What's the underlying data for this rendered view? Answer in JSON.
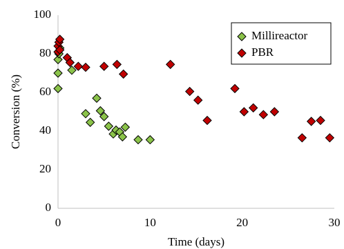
{
  "chart_data": {
    "type": "scatter",
    "title": "",
    "xlabel": "Time (days)",
    "ylabel": "Conversion  (%)",
    "xlim": [
      0,
      30
    ],
    "ylim": [
      0,
      100
    ],
    "xticks": [
      "0",
      "10",
      "20",
      "30"
    ],
    "yticks": [
      "0",
      "20",
      "40",
      "60",
      "80",
      "100"
    ],
    "grid": false,
    "legend_position": "top-right",
    "series": [
      {
        "name": "Millireactor",
        "color": "#8BC34A",
        "marker": "diamond",
        "points": [
          [
            0.0,
            62
          ],
          [
            0.0,
            70
          ],
          [
            0.0,
            77
          ],
          [
            0.1,
            80
          ],
          [
            0.2,
            83
          ],
          [
            1.5,
            71.5
          ],
          [
            3.0,
            49
          ],
          [
            3.5,
            44.5
          ],
          [
            4.2,
            57
          ],
          [
            4.6,
            50.5
          ],
          [
            5.0,
            47.5
          ],
          [
            5.5,
            42.5
          ],
          [
            6.0,
            38.5
          ],
          [
            6.3,
            40.5
          ],
          [
            6.7,
            39.5
          ],
          [
            7.0,
            37
          ],
          [
            7.3,
            42
          ],
          [
            8.7,
            35.5
          ],
          [
            10.0,
            35.5
          ]
        ]
      },
      {
        "name": "PBR",
        "color": "#C00000",
        "marker": "diamond",
        "points": [
          [
            0.0,
            81
          ],
          [
            0.0,
            84
          ],
          [
            0.1,
            86
          ],
          [
            0.2,
            87.5
          ],
          [
            0.2,
            82
          ],
          [
            1.0,
            78
          ],
          [
            1.3,
            75.5
          ],
          [
            2.2,
            73.5
          ],
          [
            3.0,
            73
          ],
          [
            5.0,
            73.5
          ],
          [
            6.4,
            74.5
          ],
          [
            7.1,
            69.5
          ],
          [
            12.2,
            74.5
          ],
          [
            14.3,
            60.5
          ],
          [
            15.2,
            56
          ],
          [
            16.2,
            45.5
          ],
          [
            19.2,
            62
          ],
          [
            20.2,
            50
          ],
          [
            21.2,
            52
          ],
          [
            22.3,
            48.5
          ],
          [
            23.5,
            50
          ],
          [
            26.5,
            36.5
          ],
          [
            27.5,
            45
          ],
          [
            28.5,
            45.5
          ],
          [
            29.5,
            36.5
          ]
        ]
      }
    ]
  }
}
